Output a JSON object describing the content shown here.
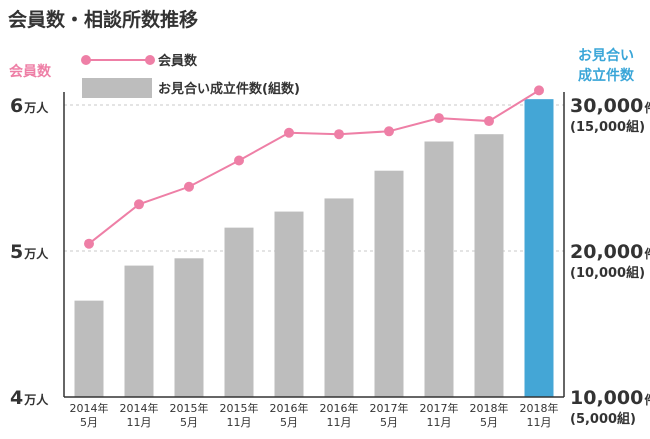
{
  "chart_data": {
    "type": "bar+line",
    "title": "会員数・相談所数推移",
    "left_axis": {
      "label": "会員数",
      "color": "#ee7fa6",
      "range": [
        40000,
        60000
      ],
      "ticks": [
        {
          "value": 60000,
          "num": "6",
          "unit": "万人"
        },
        {
          "value": 50000,
          "num": "5",
          "unit": "万人"
        },
        {
          "value": 40000,
          "num": "4",
          "unit": "万人"
        }
      ]
    },
    "right_axis": {
      "label_line1": "お見合い",
      "label_line2": "成立件数",
      "color": "#3aa6d8",
      "range": [
        10000,
        30000
      ],
      "ticks": [
        {
          "value": 30000,
          "num": "30,000",
          "unit": "件",
          "sub": "(15,000組)"
        },
        {
          "value": 20000,
          "num": "20,000",
          "unit": "件",
          "sub": "(10,000組)"
        },
        {
          "value": 10000,
          "num": "10,000",
          "unit": "件",
          "sub": "(5,000組)"
        }
      ]
    },
    "categories": [
      [
        "2014年",
        "5月"
      ],
      [
        "2014年",
        "11月"
      ],
      [
        "2015年",
        "5月"
      ],
      [
        "2015年",
        "11月"
      ],
      [
        "2016年",
        "5月"
      ],
      [
        "2016年",
        "11月"
      ],
      [
        "2017年",
        "5月"
      ],
      [
        "2017年",
        "11月"
      ],
      [
        "2018年",
        "5月"
      ],
      [
        "2018年",
        "11月"
      ]
    ],
    "series": [
      {
        "name": "会員数",
        "kind": "line",
        "axis": "left",
        "color": "#ee7fa6",
        "values": [
          50500,
          53200,
          54400,
          56200,
          58100,
          58000,
          58200,
          59100,
          58900,
          61000
        ]
      },
      {
        "name": "お見合い成立件数(組数)",
        "kind": "bar",
        "axis": "right",
        "color": "#bdbdbd",
        "highlight_color": "#44a6d6",
        "highlight_index": 9,
        "values": [
          16600,
          19000,
          19500,
          21600,
          22700,
          23600,
          25500,
          27500,
          28000,
          30400
        ]
      }
    ]
  }
}
